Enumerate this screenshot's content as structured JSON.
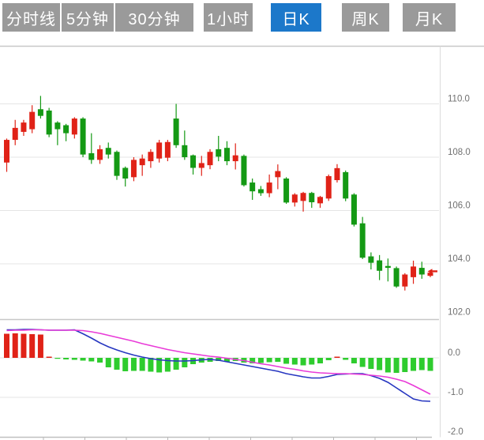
{
  "tabs": {
    "items": [
      {
        "key": "time-line",
        "label": "分时线",
        "active": false
      },
      {
        "key": "5min",
        "label": "5分钟",
        "active": false
      },
      {
        "key": "30min",
        "label": "30分钟",
        "active": false
      },
      {
        "key": "1hour",
        "label": "1小时",
        "active": false
      },
      {
        "key": "daily-k",
        "label": "日K",
        "active": true
      },
      {
        "key": "weekly-k",
        "label": "周K",
        "active": false
      },
      {
        "key": "monthly-k",
        "label": "月K",
        "active": false
      }
    ]
  },
  "chart_data": {
    "type": "candlestick_with_macd",
    "price_axis": {
      "labels": [
        "110.0",
        "108.0",
        "106.0",
        "104.0",
        "102.0"
      ],
      "values": [
        110,
        108,
        106,
        104,
        102
      ],
      "gridline_values": [
        110,
        108,
        106,
        104
      ]
    },
    "macd_axis": {
      "labels": [
        "0.0",
        "-1.0",
        "-2.0"
      ],
      "values": [
        0,
        -1,
        -2
      ],
      "gridline_values": [
        0,
        -1
      ]
    },
    "last_price_marker": 103.72,
    "candles": [
      [
        107.8,
        108.7,
        107.45,
        108.65
      ],
      [
        108.65,
        109.4,
        108.45,
        109.1
      ],
      [
        108.95,
        109.4,
        108.8,
        109.3
      ],
      [
        109.05,
        109.95,
        108.9,
        109.7
      ],
      [
        109.8,
        110.3,
        109.45,
        109.55
      ],
      [
        109.75,
        109.85,
        108.75,
        108.85
      ],
      [
        109.3,
        109.35,
        108.45,
        109.05
      ],
      [
        109.2,
        109.25,
        108.6,
        108.9
      ],
      [
        108.85,
        109.5,
        108.7,
        109.45
      ],
      [
        109.45,
        109.5,
        108.0,
        108.1
      ],
      [
        108.15,
        108.9,
        107.75,
        107.9
      ],
      [
        107.9,
        108.45,
        107.75,
        108.3
      ],
      [
        108.35,
        108.55,
        107.95,
        108.1
      ],
      [
        108.2,
        108.25,
        107.15,
        107.3
      ],
      [
        107.6,
        107.65,
        106.9,
        107.2
      ],
      [
        107.25,
        108.0,
        107.1,
        107.9
      ],
      [
        107.7,
        108.1,
        107.3,
        107.95
      ],
      [
        107.85,
        108.3,
        107.6,
        108.2
      ],
      [
        107.95,
        108.65,
        107.8,
        108.55
      ],
      [
        107.98,
        108.65,
        107.85,
        108.57
      ],
      [
        109.45,
        110.0,
        108.35,
        108.45
      ],
      [
        108.45,
        109.0,
        107.9,
        108.0
      ],
      [
        108.07,
        108.1,
        107.35,
        107.6
      ],
      [
        107.6,
        108.05,
        107.3,
        107.78
      ],
      [
        107.7,
        108.3,
        107.55,
        108.2
      ],
      [
        108.3,
        108.8,
        107.85,
        108.02
      ],
      [
        108.35,
        108.6,
        107.7,
        107.85
      ],
      [
        107.85,
        108.52,
        107.54,
        108.07
      ],
      [
        108.05,
        108.1,
        106.9,
        106.95
      ],
      [
        107.05,
        107.2,
        106.4,
        106.72
      ],
      [
        106.8,
        106.92,
        106.55,
        106.65
      ],
      [
        106.65,
        107.35,
        106.5,
        107.05
      ],
      [
        107.25,
        107.73,
        106.8,
        107.48
      ],
      [
        107.2,
        107.25,
        106.25,
        106.3
      ],
      [
        106.3,
        106.65,
        106.15,
        106.6
      ],
      [
        106.36,
        106.7,
        105.96,
        106.66
      ],
      [
        106.66,
        106.7,
        106.1,
        106.31
      ],
      [
        106.27,
        106.55,
        106.1,
        106.51
      ],
      [
        106.45,
        107.35,
        106.36,
        107.29
      ],
      [
        107.14,
        107.74,
        107.05,
        107.59
      ],
      [
        107.44,
        107.5,
        106.35,
        106.45
      ],
      [
        106.6,
        106.65,
        105.4,
        105.47
      ],
      [
        105.52,
        105.76,
        104.18,
        104.23
      ],
      [
        104.28,
        104.43,
        103.79,
        104.04
      ],
      [
        104.13,
        104.33,
        103.39,
        103.74
      ],
      [
        103.92,
        104.2,
        103.34,
        103.85
      ],
      [
        103.84,
        103.9,
        103.1,
        103.15
      ],
      [
        103.15,
        103.65,
        103.0,
        103.6
      ],
      [
        103.5,
        104.12,
        103.25,
        103.9
      ],
      [
        103.85,
        104.08,
        103.44,
        103.6
      ],
      [
        103.55,
        103.7,
        103.5,
        103.67
      ]
    ],
    "macd": {
      "histogram": [
        0.61,
        0.62,
        0.61,
        0.6,
        0.59,
        0.03,
        -0.02,
        -0.04,
        -0.05,
        -0.07,
        -0.09,
        -0.12,
        -0.24,
        -0.3,
        -0.34,
        -0.33,
        -0.33,
        -0.35,
        -0.37,
        -0.35,
        -0.3,
        -0.24,
        -0.16,
        -0.12,
        -0.1,
        -0.08,
        -0.1,
        -0.08,
        -0.12,
        -0.14,
        -0.13,
        -0.11,
        -0.1,
        -0.15,
        -0.17,
        -0.19,
        -0.17,
        -0.14,
        -0.06,
        0.03,
        -0.05,
        -0.14,
        -0.23,
        -0.28,
        -0.31,
        -0.37,
        -0.38,
        -0.36,
        -0.33,
        -0.31,
        -0.33
      ],
      "dif": [
        0.71,
        0.71,
        0.72,
        0.72,
        0.71,
        0.7,
        0.7,
        0.7,
        0.71,
        0.61,
        0.5,
        0.38,
        0.28,
        0.2,
        0.13,
        0.07,
        0.02,
        -0.02,
        -0.05,
        -0.07,
        -0.08,
        -0.08,
        -0.07,
        -0.05,
        -0.04,
        -0.06,
        -0.1,
        -0.14,
        -0.18,
        -0.22,
        -0.26,
        -0.3,
        -0.34,
        -0.4,
        -0.44,
        -0.48,
        -0.51,
        -0.51,
        -0.47,
        -0.42,
        -0.41,
        -0.4,
        -0.4,
        -0.45,
        -0.52,
        -0.62,
        -0.76,
        -0.9,
        -1.04,
        -1.09,
        -1.1
      ],
      "dea": [
        0.69,
        0.7,
        0.7,
        0.71,
        0.71,
        0.7,
        0.7,
        0.7,
        0.7,
        0.69,
        0.66,
        0.62,
        0.57,
        0.52,
        0.47,
        0.42,
        0.36,
        0.31,
        0.26,
        0.21,
        0.17,
        0.13,
        0.1,
        0.07,
        0.04,
        0.02,
        -0.01,
        -0.04,
        -0.07,
        -0.11,
        -0.15,
        -0.18,
        -0.22,
        -0.26,
        -0.29,
        -0.33,
        -0.36,
        -0.38,
        -0.39,
        -0.4,
        -0.4,
        -0.41,
        -0.42,
        -0.44,
        -0.46,
        -0.49,
        -0.54,
        -0.6,
        -0.7,
        -0.81,
        -0.92
      ]
    },
    "colors": {
      "up": "#e02217",
      "down": "#149914",
      "hist_up": "#e02217",
      "hist_down": "#2ecc2e",
      "dif_line": "#2636c0",
      "dea_line": "#e93ad8",
      "tab_active_bg": "#1c78ca",
      "tab_bg": "#9a9a9a",
      "grid": "#e4e4e4",
      "panel_border": "#c8c8c8",
      "label": "#707070",
      "marker": "#e02217"
    }
  }
}
